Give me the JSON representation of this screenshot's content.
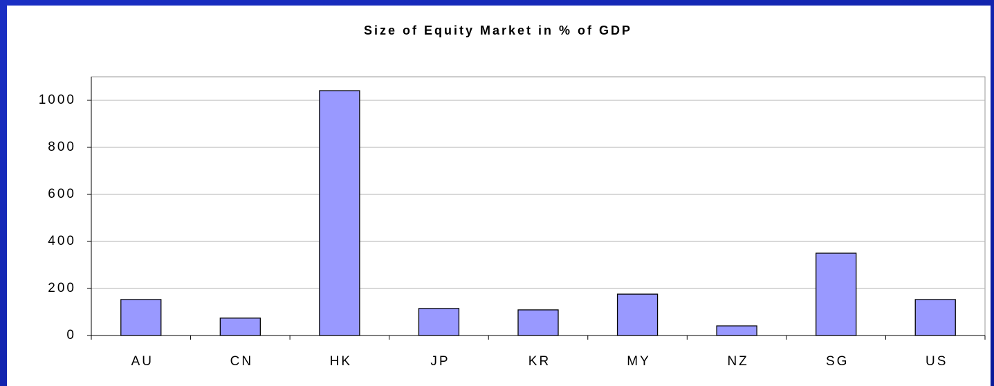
{
  "chart_data": {
    "type": "bar",
    "title": "Size of Equity Market in % of GDP",
    "categories": [
      "AU",
      "CN",
      "HK",
      "JP",
      "KR",
      "MY",
      "NZ",
      "SG",
      "US"
    ],
    "values": [
      153,
      74,
      1041,
      115,
      109,
      176,
      41,
      350,
      153
    ],
    "color": "#9999ff",
    "ylim": [
      0,
      1100
    ],
    "yticks": [
      0,
      200,
      400,
      600,
      800,
      1000
    ],
    "grid": true
  }
}
